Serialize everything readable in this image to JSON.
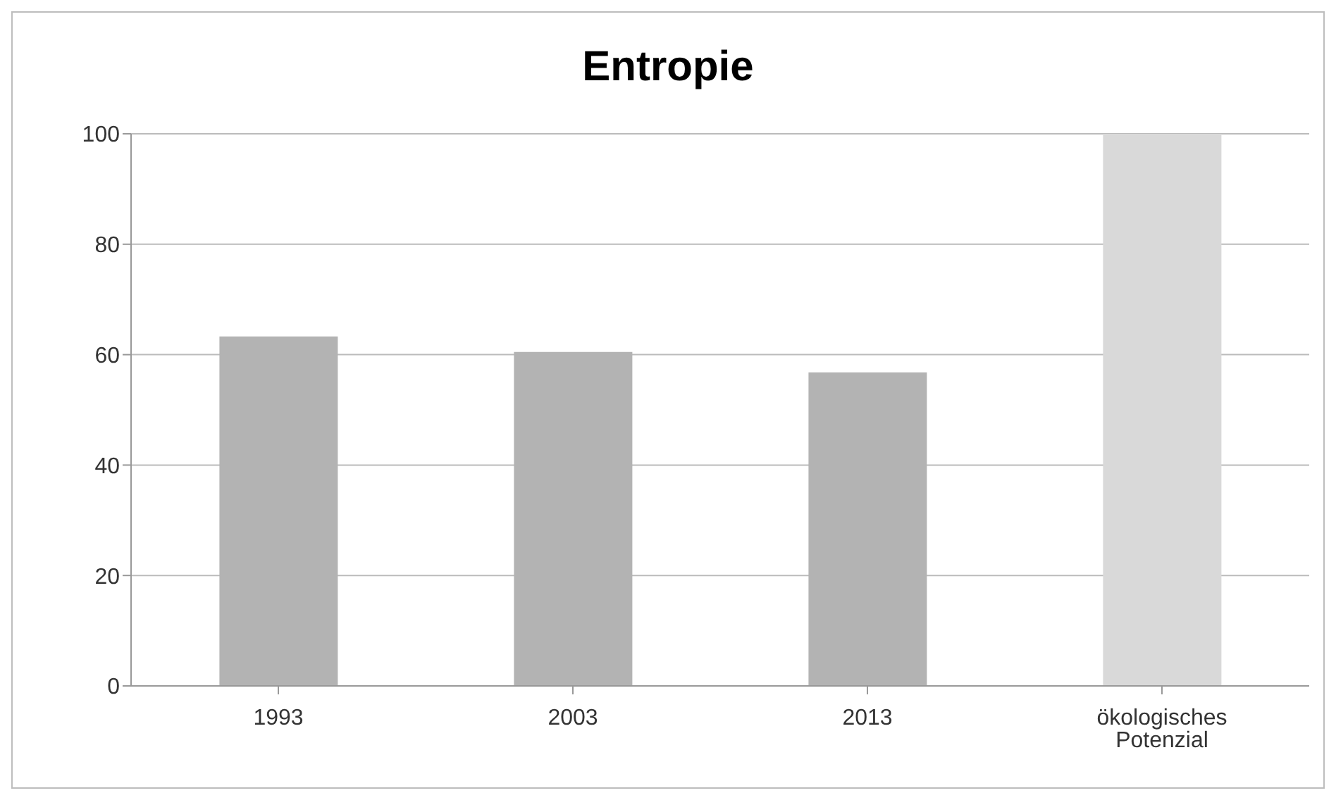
{
  "chart_data": {
    "type": "bar",
    "title": "Entropie",
    "categories": [
      "1993",
      "2003",
      "2013",
      "ökologisches Potenzial"
    ],
    "values": [
      63.3,
      60.5,
      56.8,
      100
    ],
    "colors": [
      "#b3b3b3",
      "#b3b3b3",
      "#b3b3b3",
      "#d9d9d9"
    ],
    "ylim": [
      0,
      100
    ],
    "yticks": [
      0,
      20,
      40,
      60,
      80,
      100
    ],
    "grid": "y",
    "legend": false
  }
}
